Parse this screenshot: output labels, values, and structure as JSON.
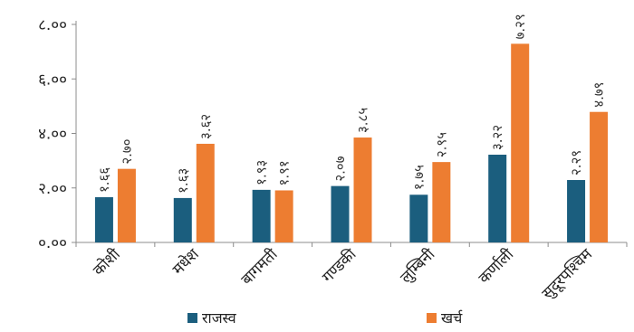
{
  "chart_data": {
    "type": "bar",
    "title": "",
    "xlabel": "",
    "ylabel": "",
    "ylim": [
      0,
      8
    ],
    "y_ticks": [
      0,
      2,
      4,
      6,
      8
    ],
    "y_tick_labels": [
      "०.००",
      "२.००",
      "४.००",
      "६.००",
      "८.००"
    ],
    "grid": false,
    "legend_position": "bottom",
    "categories": [
      "कोशी",
      "मधेश",
      "बागमती",
      "गण्डकी",
      "लुम्बिनी",
      "कर्णाली",
      "सुदूरपश्चिम"
    ],
    "series": [
      {
        "name": "राजस्व",
        "color": "#1b5e7e",
        "values": [
          1.66,
          1.63,
          1.93,
          2.07,
          1.75,
          3.22,
          2.29
        ],
        "labels": [
          "१.६६",
          "१.६३",
          "१.९३",
          "२.०७",
          "१.७५",
          "३.२२",
          "२.२९"
        ]
      },
      {
        "name": "खर्च",
        "color": "#ed7d31",
        "values": [
          2.7,
          3.62,
          1.91,
          3.85,
          2.95,
          7.29,
          4.79
        ],
        "labels": [
          "२.७०",
          "३.६२",
          "१.९१",
          "३.८५",
          "२.९५",
          "७.२९",
          "४.७९"
        ]
      }
    ]
  }
}
